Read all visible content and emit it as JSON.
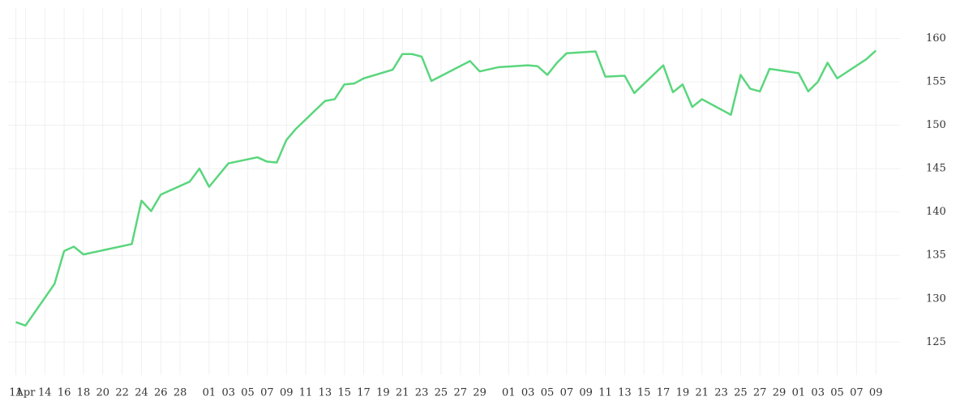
{
  "chart_data": {
    "type": "line",
    "x": [
      0,
      1,
      4,
      5,
      6,
      7,
      12,
      13,
      14,
      15,
      18,
      19,
      20,
      22,
      25,
      26,
      27,
      28,
      29,
      32,
      33,
      34,
      35,
      36,
      39,
      40,
      41,
      42,
      43,
      47,
      48,
      50,
      53,
      54,
      55,
      56,
      57,
      60,
      61,
      63,
      64,
      67,
      68,
      69,
      70,
      71,
      74,
      75,
      76,
      77,
      78,
      81,
      82,
      83,
      84,
      85,
      88,
      89
    ],
    "series": [
      {
        "color": "#5ad67d",
        "values": [
          127.3,
          126.9,
          131.7,
          135.5,
          136.0,
          135.1,
          136.3,
          141.3,
          140.1,
          142.0,
          143.5,
          145.0,
          142.9,
          145.6,
          146.3,
          145.8,
          145.7,
          148.3,
          149.6,
          152.8,
          153.0,
          154.7,
          154.8,
          155.4,
          156.4,
          158.2,
          158.2,
          157.9,
          155.1,
          157.4,
          156.2,
          156.7,
          156.9,
          156.8,
          155.8,
          157.2,
          158.3,
          158.5,
          155.6,
          155.7,
          153.7,
          156.9,
          153.8,
          154.7,
          152.1,
          153.0,
          151.2,
          155.8,
          154.2,
          153.9,
          156.5,
          156.0,
          153.9,
          155.0,
          157.2,
          155.4,
          157.6,
          158.6
        ]
      }
    ],
    "xlim": [
      -0.8,
      91.5
    ],
    "xticks": [
      {
        "value": 0,
        "label": "11"
      },
      {
        "value": 1,
        "label": "Apr"
      },
      {
        "value": 3,
        "label": "14"
      },
      {
        "value": 5,
        "label": "16"
      },
      {
        "value": 7,
        "label": "18"
      },
      {
        "value": 9,
        "label": "20"
      },
      {
        "value": 11,
        "label": "22"
      },
      {
        "value": 13,
        "label": "24"
      },
      {
        "value": 15,
        "label": "26"
      },
      {
        "value": 17,
        "label": "28"
      },
      {
        "value": 20,
        "label": "01"
      },
      {
        "value": 22,
        "label": "03"
      },
      {
        "value": 24,
        "label": "05"
      },
      {
        "value": 26,
        "label": "07"
      },
      {
        "value": 28,
        "label": "09"
      },
      {
        "value": 30,
        "label": "11"
      },
      {
        "value": 32,
        "label": "13"
      },
      {
        "value": 34,
        "label": "15"
      },
      {
        "value": 36,
        "label": "17"
      },
      {
        "value": 38,
        "label": "19"
      },
      {
        "value": 40,
        "label": "21"
      },
      {
        "value": 42,
        "label": "23"
      },
      {
        "value": 44,
        "label": "25"
      },
      {
        "value": 46,
        "label": "27"
      },
      {
        "value": 48,
        "label": "29"
      },
      {
        "value": 51,
        "label": "01"
      },
      {
        "value": 53,
        "label": "03"
      },
      {
        "value": 55,
        "label": "05"
      },
      {
        "value": 57,
        "label": "07"
      },
      {
        "value": 59,
        "label": "09"
      },
      {
        "value": 61,
        "label": "11"
      },
      {
        "value": 63,
        "label": "13"
      },
      {
        "value": 65,
        "label": "15"
      },
      {
        "value": 67,
        "label": "17"
      },
      {
        "value": 69,
        "label": "19"
      },
      {
        "value": 71,
        "label": "21"
      },
      {
        "value": 73,
        "label": "23"
      },
      {
        "value": 75,
        "label": "25"
      },
      {
        "value": 77,
        "label": "27"
      },
      {
        "value": 79,
        "label": "29"
      },
      {
        "value": 81,
        "label": "01"
      },
      {
        "value": 83,
        "label": "03"
      },
      {
        "value": 85,
        "label": "05"
      },
      {
        "value": 87,
        "label": "07"
      },
      {
        "value": 89,
        "label": "09"
      }
    ],
    "ylim": [
      121.2,
      163.5
    ],
    "yticks": [
      125,
      130,
      135,
      140,
      145,
      150,
      155,
      160
    ],
    "grid": true,
    "y_axis_side": "right"
  }
}
